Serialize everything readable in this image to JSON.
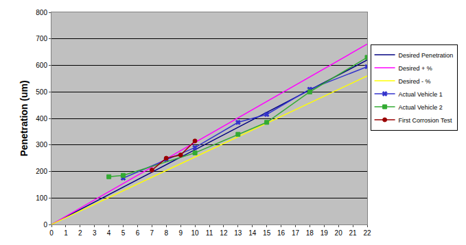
{
  "chart_data": {
    "type": "line",
    "y_label": "Penetration (um)",
    "xlim": [
      0,
      22
    ],
    "xticks": [
      0,
      1,
      2,
      3,
      4,
      5,
      6,
      7,
      8,
      9,
      10,
      11,
      12,
      13,
      14,
      15,
      16,
      17,
      18,
      19,
      20,
      21,
      22
    ],
    "ylim": [
      0,
      800
    ],
    "yticks": [
      0,
      100,
      200,
      300,
      400,
      500,
      600,
      700,
      800
    ],
    "grid": true,
    "legend": "right",
    "series": [
      {
        "name": "Desired Penetration",
        "color": "#000080",
        "marker": "none",
        "line_style": "solid",
        "x": [
          0,
          22
        ],
        "values": [
          0,
          620
        ]
      },
      {
        "name": "Desired + %",
        "color": "#ff00ff",
        "marker": "none",
        "line_style": "solid",
        "x": [
          0,
          22
        ],
        "values": [
          0,
          680
        ]
      },
      {
        "name": "Desired - %",
        "color": "#ffff00",
        "marker": "none",
        "line_style": "solid",
        "x": [
          0,
          22
        ],
        "values": [
          0,
          560
        ]
      },
      {
        "name": "Actual Vehicle 1",
        "color": "#3333cc",
        "marker": "x",
        "line_style": "solid",
        "x": [
          5,
          8,
          10,
          13,
          15,
          18,
          22
        ],
        "values": [
          175,
          245,
          290,
          385,
          415,
          510,
          595
        ]
      },
      {
        "name": "Actual Vehicle 2",
        "color": "#33aa33",
        "marker": "square",
        "line_style": "solid",
        "x": [
          4,
          5,
          10,
          13,
          15,
          18,
          22
        ],
        "values": [
          180,
          185,
          270,
          340,
          385,
          500,
          630
        ]
      },
      {
        "name": "First Corrosion Test",
        "color": "#990000",
        "marker": "circle",
        "line_style": "solid",
        "x": [
          7,
          8,
          9,
          10
        ],
        "values": [
          205,
          250,
          262,
          315
        ]
      }
    ]
  }
}
